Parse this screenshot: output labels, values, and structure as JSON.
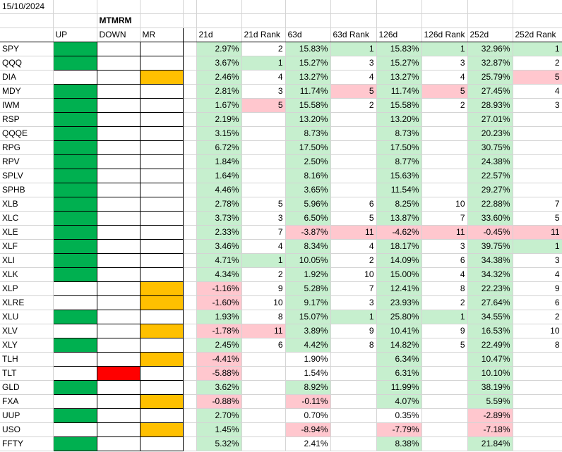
{
  "colors": {
    "green_fill": "#00b050",
    "red_fill": "#ff0000",
    "orange_fill": "#ffc000",
    "light_green": "#c6efce",
    "light_red": "#ffc7ce"
  },
  "date": "15/10/2024",
  "group_title": "MTMRM",
  "headers": [
    "UP",
    "DOWN",
    "MR",
    "21d",
    "21d Rank",
    "63d",
    "63d Rank",
    "126d",
    "126d Rank",
    "252d",
    "252d Rank"
  ],
  "rows": [
    {
      "t": "SPY",
      "s": "UP",
      "d21": "2.97%",
      "r21": "2",
      "d63": "15.83%",
      "r63": "1",
      "d126": "15.83%",
      "r126": "1",
      "d252": "32.96%",
      "r252": "1",
      "g": 1
    },
    {
      "t": "QQQ",
      "s": "UP",
      "d21": "3.67%",
      "r21": "1",
      "d63": "15.27%",
      "r63": "3",
      "d126": "15.27%",
      "r126": "3",
      "d252": "32.87%",
      "r252": "2",
      "g": 1
    },
    {
      "t": "DIA",
      "s": "MR",
      "d21": "2.46%",
      "r21": "4",
      "d63": "13.27%",
      "r63": "4",
      "d126": "13.27%",
      "r126": "4",
      "d252": "25.79%",
      "r252": "5",
      "g": 1
    },
    {
      "t": "MDY",
      "s": "UP",
      "d21": "2.81%",
      "r21": "3",
      "d63": "11.74%",
      "r63": "5",
      "d126": "11.74%",
      "r126": "5",
      "d252": "27.45%",
      "r252": "4",
      "g": 1
    },
    {
      "t": "IWM",
      "s": "UP",
      "d21": "1.67%",
      "r21": "5",
      "d63": "15.58%",
      "r63": "2",
      "d126": "15.58%",
      "r126": "2",
      "d252": "28.93%",
      "r252": "3",
      "g": 1
    },
    {
      "t": "RSP",
      "s": "UP",
      "d21": "2.19%",
      "r21": "",
      "d63": "13.20%",
      "r63": "",
      "d126": "13.20%",
      "r126": "",
      "d252": "27.01%",
      "r252": "",
      "g": 2
    },
    {
      "t": "QQQE",
      "s": "UP",
      "d21": "3.15%",
      "r21": "",
      "d63": "8.73%",
      "r63": "",
      "d126": "8.73%",
      "r126": "",
      "d252": "20.23%",
      "r252": "",
      "g": 2
    },
    {
      "t": "RPG",
      "s": "UP",
      "d21": "6.72%",
      "r21": "",
      "d63": "17.50%",
      "r63": "",
      "d126": "17.50%",
      "r126": "",
      "d252": "30.75%",
      "r252": "",
      "g": 2
    },
    {
      "t": "RPV",
      "s": "UP",
      "d21": "1.84%",
      "r21": "",
      "d63": "2.50%",
      "r63": "",
      "d126": "8.77%",
      "r126": "",
      "d252": "24.38%",
      "r252": "",
      "g": 2
    },
    {
      "t": "SPLV",
      "s": "UP",
      "d21": "1.64%",
      "r21": "",
      "d63": "8.16%",
      "r63": "",
      "d126": "15.63%",
      "r126": "",
      "d252": "22.57%",
      "r252": "",
      "g": 2
    },
    {
      "t": "SPHB",
      "s": "UP",
      "d21": "4.46%",
      "r21": "",
      "d63": "3.65%",
      "r63": "",
      "d126": "11.54%",
      "r126": "",
      "d252": "29.27%",
      "r252": "",
      "g": 2
    },
    {
      "t": "XLB",
      "s": "UP",
      "d21": "2.78%",
      "r21": "5",
      "d63": "5.96%",
      "r63": "6",
      "d126": "8.25%",
      "r126": "10",
      "d252": "22.88%",
      "r252": "7",
      "g": 3
    },
    {
      "t": "XLC",
      "s": "UP",
      "d21": "3.73%",
      "r21": "3",
      "d63": "6.50%",
      "r63": "5",
      "d126": "13.87%",
      "r126": "7",
      "d252": "33.60%",
      "r252": "5",
      "g": 3
    },
    {
      "t": "XLE",
      "s": "UP",
      "d21": "2.33%",
      "r21": "7",
      "d63": "-3.87%",
      "r63": "11",
      "d126": "-4.62%",
      "r126": "11",
      "d252": "-0.45%",
      "r252": "11",
      "g": 3
    },
    {
      "t": "XLF",
      "s": "UP",
      "d21": "3.46%",
      "r21": "4",
      "d63": "8.34%",
      "r63": "4",
      "d126": "18.17%",
      "r126": "3",
      "d252": "39.75%",
      "r252": "1",
      "g": 3
    },
    {
      "t": "XLI",
      "s": "UP",
      "d21": "4.71%",
      "r21": "1",
      "d63": "10.05%",
      "r63": "2",
      "d126": "14.09%",
      "r126": "6",
      "d252": "34.38%",
      "r252": "3",
      "g": 3
    },
    {
      "t": "XLK",
      "s": "UP",
      "d21": "4.34%",
      "r21": "2",
      "d63": "1.92%",
      "r63": "10",
      "d126": "15.00%",
      "r126": "4",
      "d252": "34.32%",
      "r252": "4",
      "g": 3
    },
    {
      "t": "XLP",
      "s": "MR",
      "d21": "-1.16%",
      "r21": "9",
      "d63": "5.28%",
      "r63": "7",
      "d126": "12.41%",
      "r126": "8",
      "d252": "22.23%",
      "r252": "9",
      "g": 3
    },
    {
      "t": "XLRE",
      "s": "MR",
      "d21": "-1.60%",
      "r21": "10",
      "d63": "9.17%",
      "r63": "3",
      "d126": "23.93%",
      "r126": "2",
      "d252": "27.64%",
      "r252": "6",
      "g": 3
    },
    {
      "t": "XLU",
      "s": "UP",
      "d21": "1.93%",
      "r21": "8",
      "d63": "15.07%",
      "r63": "1",
      "d126": "25.80%",
      "r126": "1",
      "d252": "34.55%",
      "r252": "2",
      "g": 3
    },
    {
      "t": "XLV",
      "s": "MR",
      "d21": "-1.78%",
      "r21": "11",
      "d63": "3.89%",
      "r63": "9",
      "d126": "10.41%",
      "r126": "9",
      "d252": "16.53%",
      "r252": "10",
      "g": 3
    },
    {
      "t": "XLY",
      "s": "UP",
      "d21": "2.45%",
      "r21": "6",
      "d63": "4.42%",
      "r63": "8",
      "d126": "14.82%",
      "r126": "5",
      "d252": "22.49%",
      "r252": "8",
      "g": 3
    },
    {
      "t": "TLH",
      "s": "MR",
      "d21": "-4.41%",
      "r21": "",
      "d63": "1.90%",
      "r63": "",
      "d126": "6.34%",
      "r126": "",
      "d252": "10.47%",
      "r252": "",
      "g": 4
    },
    {
      "t": "TLT",
      "s": "DOWN",
      "d21": "-5.88%",
      "r21": "",
      "d63": "1.54%",
      "r63": "",
      "d126": "6.31%",
      "r126": "",
      "d252": "10.10%",
      "r252": "",
      "g": 4
    },
    {
      "t": "GLD",
      "s": "UP",
      "d21": "3.62%",
      "r21": "",
      "d63": "8.92%",
      "r63": "",
      "d126": "11.99%",
      "r126": "",
      "d252": "38.19%",
      "r252": "",
      "g": 4
    },
    {
      "t": "FXA",
      "s": "MR",
      "d21": "-0.88%",
      "r21": "",
      "d63": "-0.11%",
      "r63": "",
      "d126": "4.07%",
      "r126": "",
      "d252": "5.59%",
      "r252": "",
      "g": 4
    },
    {
      "t": "UUP",
      "s": "UP",
      "d21": "2.70%",
      "r21": "",
      "d63": "0.70%",
      "r63": "",
      "d126": "0.35%",
      "r126": "",
      "d252": "-2.89%",
      "r252": "",
      "g": 4
    },
    {
      "t": "USO",
      "s": "MR",
      "d21": "1.45%",
      "r21": "",
      "d63": "-8.94%",
      "r63": "",
      "d126": "-7.79%",
      "r126": "",
      "d252": "-7.18%",
      "r252": "",
      "g": 4
    },
    {
      "t": "FFTY",
      "s": "UP",
      "d21": "5.32%",
      "r21": "",
      "d63": "2.41%",
      "r63": "",
      "d126": "8.38%",
      "r126": "",
      "d252": "21.84%",
      "r252": "",
      "g": 4
    }
  ]
}
